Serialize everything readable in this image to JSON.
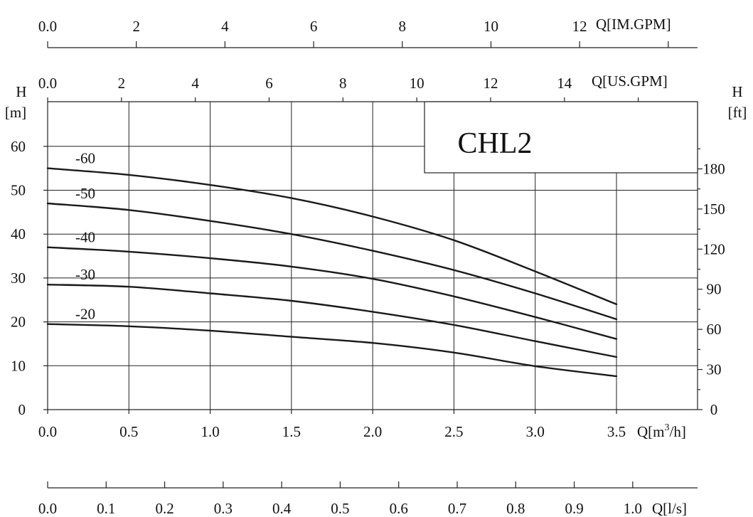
{
  "chart_data": {
    "type": "line",
    "title": "CHL2",
    "grid": true,
    "x_primary": {
      "unit_prefix": "Q[m",
      "unit_sup": "3",
      "unit_suffix": "/h]",
      "ticks": [
        "0.0",
        "0.5",
        "1.0",
        "1.5",
        "2.0",
        "2.5",
        "3.0",
        "3.5"
      ],
      "range": [
        0,
        3.5
      ]
    },
    "x_us_gpm": {
      "label": "Q[US.GPM]",
      "ticks": [
        "0.0",
        "2",
        "4",
        "6",
        "8",
        "10",
        "12",
        "14"
      ],
      "factor_per_m3h": 4.4029
    },
    "x_im_gpm": {
      "label": "Q[IM.GPM]",
      "ticks": [
        "0.0",
        "2",
        "4",
        "6",
        "8",
        "10",
        "12"
      ],
      "factor_per_m3h": 3.6662
    },
    "x_ls": {
      "label": "Q[l/s]",
      "ticks": [
        "0.0",
        "0.1",
        "0.2",
        "0.3",
        "0.4",
        "0.5",
        "0.6",
        "0.7",
        "0.8",
        "0.9",
        "1.0"
      ],
      "factor_per_m3h": 0.27778
    },
    "y_left": {
      "label_top": "H",
      "label_bottom": "[m]",
      "ticks": [
        "0",
        "10",
        "20",
        "30",
        "40",
        "50",
        "60"
      ],
      "range": [
        0,
        70
      ]
    },
    "y_right": {
      "label_top": "H",
      "label_bottom": "[ft]",
      "ticks": [
        "0",
        "30",
        "60",
        "90",
        "120",
        "150",
        "180"
      ],
      "factor_per_m": 3.2808
    },
    "series": [
      {
        "name": "-60",
        "x": [
          0,
          0.5,
          1.0,
          1.5,
          2.0,
          2.5,
          3.0,
          3.5
        ],
        "y": [
          55,
          53.5,
          51.2,
          48.2,
          44,
          38.6,
          31.5,
          24
        ]
      },
      {
        "name": "-50",
        "x": [
          0,
          0.5,
          1.0,
          1.5,
          2.0,
          2.5,
          3.0,
          3.5
        ],
        "y": [
          47,
          45.5,
          43,
          40,
          36.2,
          31.8,
          26.5,
          20.6
        ]
      },
      {
        "name": "-40",
        "x": [
          0,
          0.5,
          1.0,
          1.5,
          2.0,
          2.5,
          3.0,
          3.5
        ],
        "y": [
          37,
          36,
          34.5,
          32.6,
          29.8,
          25.8,
          21.1,
          16.1
        ]
      },
      {
        "name": "-30",
        "x": [
          0,
          0.5,
          1.0,
          1.5,
          2.0,
          2.5,
          3.0,
          3.5
        ],
        "y": [
          28.5,
          28,
          26.5,
          24.8,
          22.3,
          19.3,
          15.6,
          12
        ]
      },
      {
        "name": "-20",
        "x": [
          0,
          0.5,
          1.0,
          1.5,
          2.0,
          2.5,
          3.0,
          3.5
        ],
        "y": [
          19.5,
          19,
          18,
          16.6,
          15.2,
          13,
          9.9,
          7.6
        ]
      }
    ]
  }
}
